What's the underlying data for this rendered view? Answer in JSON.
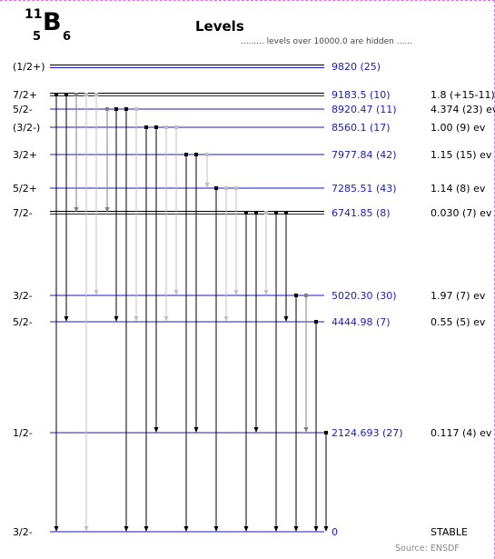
{
  "nucleus": {
    "mass": "11",
    "symbol": "B",
    "z": "5",
    "n": "6"
  },
  "title": "Levels",
  "hidden_note": "......... levels over 10000.0 are hidden ......",
  "source": "Source: ENSDF",
  "colors": {
    "level": "#1a1ac8",
    "energy_text": "#1a1ac8",
    "gamma_strong": "#000000",
    "gamma_medium": "#808080",
    "gamma_weak": "#c0c0c0"
  },
  "levels": [
    {
      "id": "L9820",
      "spin": "(1/2+)",
      "energy": "9820 (25)",
      "width": "",
      "double": true
    },
    {
      "id": "L9183",
      "spin": "7/2+",
      "energy": "9183.5 (10)",
      "width": "1.8 (+15-11) ev",
      "double": true
    },
    {
      "id": "L8920",
      "spin": "5/2-",
      "energy": "8920.47 (11)",
      "width": "4.374 (23) ev"
    },
    {
      "id": "L8560",
      "spin": "(3/2-)",
      "energy": "8560.1 (17)",
      "width": "1.00 (9) ev"
    },
    {
      "id": "L7977",
      "spin": "3/2+",
      "energy": "7977.84 (42)",
      "width": "1.15 (15) ev"
    },
    {
      "id": "L7285",
      "spin": "5/2+",
      "energy": "7285.51 (43)",
      "width": "1.14 (8) ev"
    },
    {
      "id": "L6741",
      "spin": "7/2-",
      "energy": "6741.85 (8)",
      "width": "0.030 (7) ev",
      "double": true
    },
    {
      "id": "L5020",
      "spin": "3/2-",
      "energy": "5020.30 (30)",
      "width": "1.97 (7) ev"
    },
    {
      "id": "L4444",
      "spin": "5/2-",
      "energy": "4444.98 (7)",
      "width": "0.55 (5) ev"
    },
    {
      "id": "L2124",
      "spin": "1/2-",
      "energy": "2124.693 (27)",
      "width": "0.117 (4) ev"
    },
    {
      "id": "L0",
      "spin": "3/2-",
      "energy": "0",
      "width": "STABLE"
    }
  ],
  "gammas": [
    {
      "from": "L9183",
      "to": "L0",
      "intensity": "strong"
    },
    {
      "from": "L9183",
      "to": "L4444",
      "intensity": "strong"
    },
    {
      "from": "L9183",
      "to": "L6741",
      "intensity": "medium"
    },
    {
      "from": "L9183",
      "to": "L0",
      "intensity": "weak"
    },
    {
      "from": "L9183",
      "to": "L5020",
      "intensity": "weak"
    },
    {
      "from": "L8920",
      "to": "L6741",
      "intensity": "medium"
    },
    {
      "from": "L8920",
      "to": "L4444",
      "intensity": "strong"
    },
    {
      "from": "L8920",
      "to": "L0",
      "intensity": "strong"
    },
    {
      "from": "L8920",
      "to": "L4444",
      "intensity": "weak"
    },
    {
      "from": "L8560",
      "to": "L0",
      "intensity": "strong"
    },
    {
      "from": "L8560",
      "to": "L2124",
      "intensity": "strong"
    },
    {
      "from": "L8560",
      "to": "L4444",
      "intensity": "weak"
    },
    {
      "from": "L8560",
      "to": "L5020",
      "intensity": "weak"
    },
    {
      "from": "L7977",
      "to": "L0",
      "intensity": "strong"
    },
    {
      "from": "L7977",
      "to": "L2124",
      "intensity": "strong"
    },
    {
      "from": "L7977",
      "to": "L7285",
      "intensity": "weak"
    },
    {
      "from": "L7285",
      "to": "L0",
      "intensity": "strong"
    },
    {
      "from": "L7285",
      "to": "L4444",
      "intensity": "weak"
    },
    {
      "from": "L7285",
      "to": "L5020",
      "intensity": "weak"
    },
    {
      "from": "L6741",
      "to": "L0",
      "intensity": "strong"
    },
    {
      "from": "L6741",
      "to": "L2124",
      "intensity": "strong"
    },
    {
      "from": "L6741",
      "to": "L5020",
      "intensity": "weak"
    },
    {
      "from": "L6741",
      "to": "L0",
      "intensity": "strong"
    },
    {
      "from": "L6741",
      "to": "L4444",
      "intensity": "strong"
    },
    {
      "from": "L5020",
      "to": "L0",
      "intensity": "strong"
    },
    {
      "from": "L5020",
      "to": "L2124",
      "intensity": "medium"
    },
    {
      "from": "L4444",
      "to": "L0",
      "intensity": "strong"
    },
    {
      "from": "L2124",
      "to": "L0",
      "intensity": "strong"
    }
  ]
}
